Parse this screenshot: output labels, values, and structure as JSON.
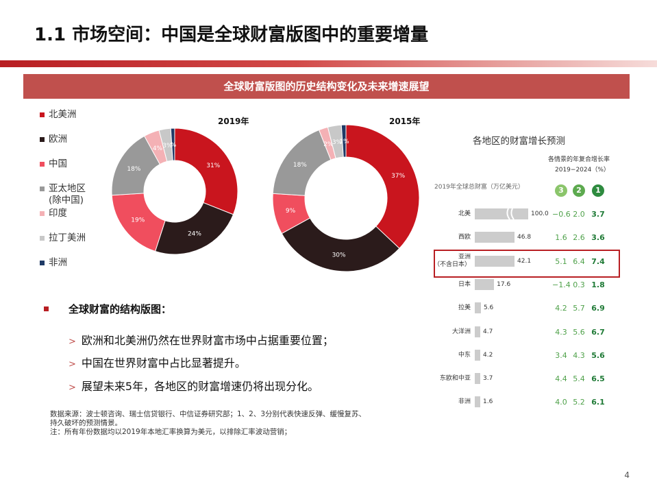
{
  "title": "1.1 市场空间：中国是全球财富版图中的重要增量",
  "banner": "全球财富版图的历史结构变化及未来增速展望",
  "legend": [
    {
      "label": "北美洲",
      "color": "#c9151e"
    },
    {
      "label": "欧洲",
      "color": "#2b1b1b"
    },
    {
      "label": "中国",
      "color": "#f04e5e"
    },
    {
      "label": "亚太地区",
      "sub": "(除中国)",
      "color": "#999999"
    },
    {
      "label": "印度",
      "color": "#f4b1b5"
    },
    {
      "label": "拉丁美洲",
      "color": "#c8c8c8"
    },
    {
      "label": "非洲",
      "color": "#1f3a66"
    }
  ],
  "chart_data": [
    {
      "type": "pie",
      "title": "2019年",
      "labels": [
        "北美洲",
        "欧洲",
        "中国",
        "亚太地区(除中国)",
        "印度",
        "拉丁美洲",
        "非洲"
      ],
      "values": [
        31,
        24,
        19,
        18,
        4,
        3,
        1
      ],
      "value_labels": [
        "31%",
        "24%",
        "19%",
        "18%",
        "4%",
        "3%",
        "%"
      ],
      "colors": [
        "#c9151e",
        "#2b1b1b",
        "#f04e5e",
        "#999999",
        "#f4b1b5",
        "#c8c8c8",
        "#1f3a66"
      ]
    },
    {
      "type": "pie",
      "title": "2015年",
      "labels": [
        "北美洲",
        "欧洲",
        "中国",
        "亚太地区(除中国)",
        "印度",
        "拉丁美洲",
        "非洲"
      ],
      "values": [
        37,
        30,
        9,
        18,
        2,
        3,
        1
      ],
      "value_labels": [
        "37%",
        "30%",
        "9%",
        "18%",
        "2%",
        "3%",
        "1%"
      ],
      "colors": [
        "#c9151e",
        "#2b1b1b",
        "#f04e5e",
        "#999999",
        "#f4b1b5",
        "#c8c8c8",
        "#1f3a66"
      ]
    },
    {
      "type": "bar",
      "title": "各地区的财富增长预测",
      "axis_label": "2019年全球总财富（万亿美元）",
      "growth_header": "各情景的年复合增长率",
      "growth_period": "2019−2024（%）",
      "scenarios": [
        "3",
        "2",
        "1"
      ],
      "scenario_colors": [
        "#8bc56b",
        "#5daa4f",
        "#2e8b3f"
      ],
      "categories": [
        "北美",
        "西欧",
        "亚洲（不含日本）",
        "日本",
        "拉美",
        "大洋洲",
        "中东",
        "东欧和中亚",
        "非洲"
      ],
      "category_lines": [
        [
          "北美"
        ],
        [
          "西欧"
        ],
        [
          "亚洲",
          "（不含日本）"
        ],
        [
          "日本"
        ],
        [
          "拉美"
        ],
        [
          "大洋洲"
        ],
        [
          "中东"
        ],
        [
          "东欧和中亚"
        ],
        [
          "非洲"
        ]
      ],
      "values": [
        100.0,
        46.8,
        42.1,
        17.6,
        5.6,
        4.7,
        4.2,
        3.7,
        1.6
      ],
      "value_labels": [
        "100.0",
        "46.8",
        "42.1",
        "17.6",
        "5.6",
        "4.7",
        "4.2",
        "3.7",
        "1.6"
      ],
      "axis_break": [
        0,
        1,
        2
      ],
      "growth": [
        [
          "−0.6",
          "2.0",
          "3.7"
        ],
        [
          "1.6",
          "2.6",
          "3.6"
        ],
        [
          "5.1",
          "6.4",
          "7.4"
        ],
        [
          "−1.4",
          "0.3",
          "1.8"
        ],
        [
          "4.2",
          "5.7",
          "6.9"
        ],
        [
          "4.3",
          "5.6",
          "6.7"
        ],
        [
          "3.4",
          "4.3",
          "5.6"
        ],
        [
          "4.4",
          "5.4",
          "6.5"
        ],
        [
          "4.0",
          "5.2",
          "6.1"
        ]
      ],
      "highlight": "亚洲（不含日本）"
    }
  ],
  "bullets": {
    "heading": "全球财富的结构版图：",
    "items": [
      "欧洲和北美洲仍然在世界财富市场中占据重要位置；",
      "中国在世界财富中占比显著提升。",
      "展望未来5年，各地区的财富增速仍将出现分化。"
    ]
  },
  "notes": [
    "数据来源：波士顿咨询、瑞士信贷银行、中信证券研究部；1、2、3分别代表快速反弹、缓慢复苏、",
    "持久破坏的预测情景。",
    "注：所有年份数据均以2019年本地汇率换算为美元，以排除汇率波动营销；"
  ],
  "page_number": "4"
}
